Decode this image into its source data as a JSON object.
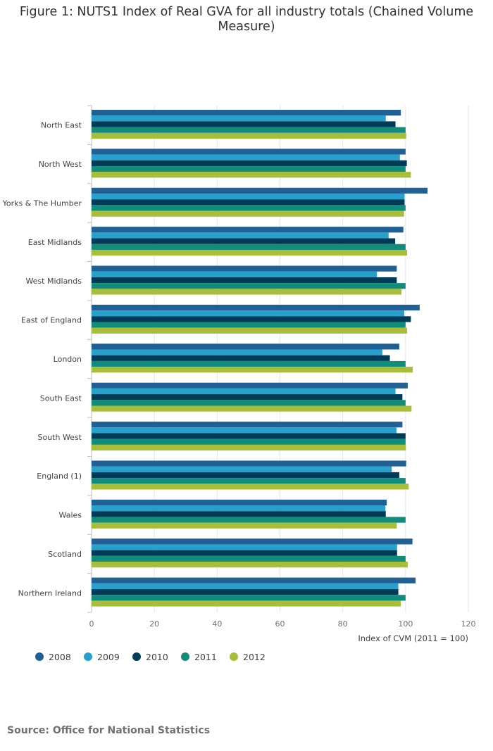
{
  "title": "Figure 1: NUTS1 Index of Real GVA for all industry totals (Chained Volume Measure)",
  "source": "Source: Office for National Statistics",
  "chart_data": {
    "type": "bar",
    "orientation": "horizontal",
    "title": "Figure 1: NUTS1 Index of Real GVA for all industry totals (Chained Volume Measure)",
    "xlabel": "Index of CVM (2011 = 100)",
    "ylabel": "",
    "xlim": [
      0,
      120
    ],
    "xticks": [
      0,
      20,
      40,
      60,
      80,
      100,
      120
    ],
    "grid": true,
    "legend_position": "bottom-left",
    "categories": [
      "North East",
      "North West",
      "Yorks & The Humber",
      "East Midlands",
      "West Midlands",
      "East of England",
      "London",
      "South East",
      "South West",
      "England (1)",
      "Wales",
      "Scotland",
      "Northern Ireland"
    ],
    "series": [
      {
        "name": "2008",
        "color": "#206095",
        "values": [
          98.5,
          100.0,
          107.0,
          99.3,
          97.2,
          104.5,
          98.0,
          100.7,
          99.0,
          100.2,
          94.0,
          102.2,
          103.2
        ]
      },
      {
        "name": "2009",
        "color": "#27a0cc",
        "values": [
          93.7,
          98.2,
          99.7,
          94.6,
          90.9,
          99.6,
          92.6,
          96.8,
          97.1,
          95.6,
          93.6,
          97.3,
          97.7
        ]
      },
      {
        "name": "2010",
        "color": "#003c57",
        "values": [
          96.8,
          100.4,
          99.7,
          96.7,
          97.2,
          101.7,
          95.0,
          99.0,
          100.0,
          98.0,
          93.7,
          97.3,
          97.7
        ]
      },
      {
        "name": "2011",
        "color": "#118c7b",
        "values": [
          100,
          100,
          100,
          100,
          100,
          100,
          100,
          100,
          100,
          100,
          100,
          100,
          100
        ]
      },
      {
        "name": "2012",
        "color": "#a8bd3a",
        "values": [
          100.2,
          101.7,
          99.5,
          100.5,
          98.7,
          100.5,
          102.3,
          101.9,
          100.1,
          101.0,
          97.2,
          100.7,
          98.5
        ]
      }
    ]
  }
}
